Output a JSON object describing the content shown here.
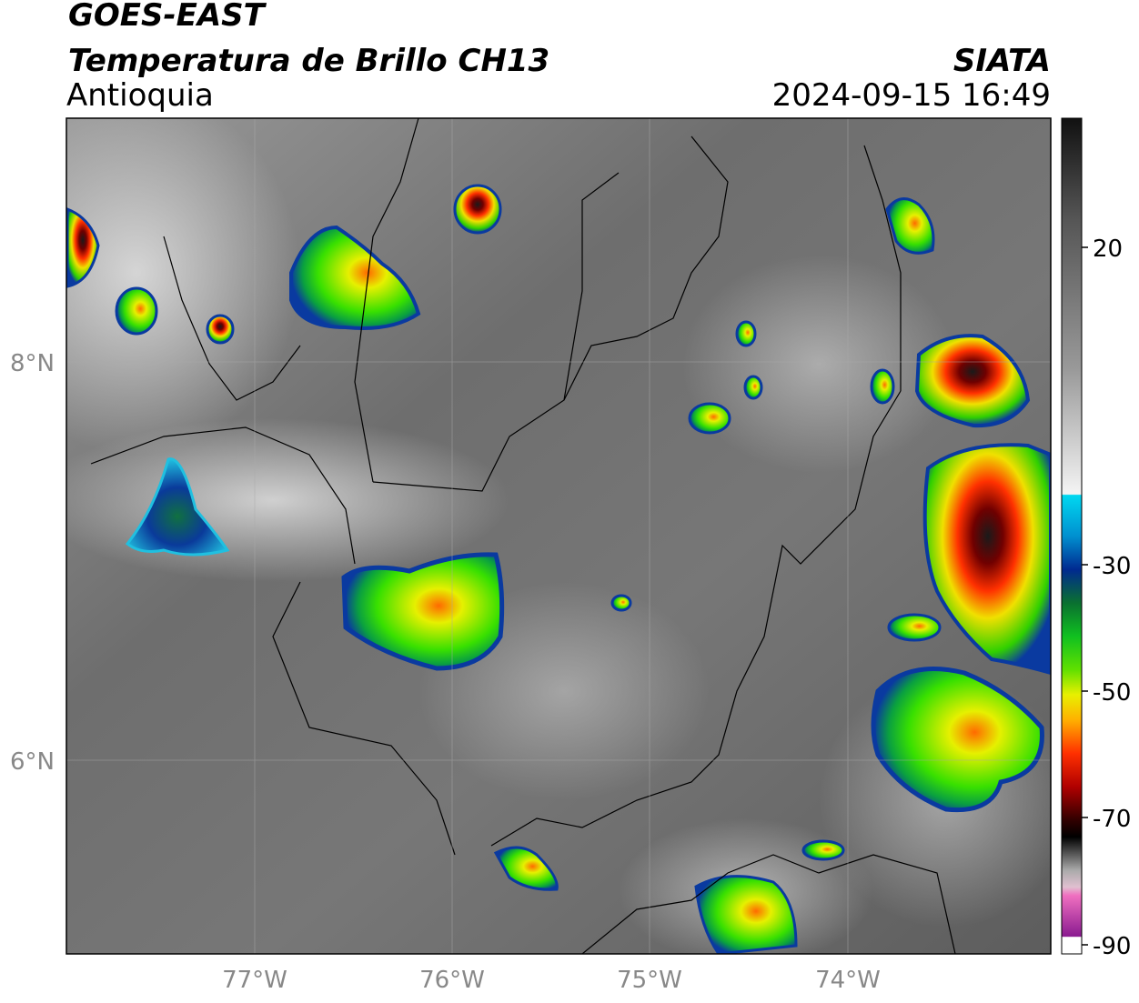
{
  "header": {
    "satellite": "GOES-EAST",
    "product": "Temperatura de Brillo CH13",
    "region": "Antioquia",
    "source": "SIATA",
    "timestamp": "2024-09-15 16:49"
  },
  "map": {
    "lat_labels": [
      "8°N",
      "6°N"
    ],
    "lon_labels": [
      "77°W",
      "76°W",
      "75°W",
      "74°W"
    ]
  },
  "colorbar": {
    "labels": [
      "20",
      "-30",
      "-50",
      "-70",
      "-90"
    ]
  }
}
